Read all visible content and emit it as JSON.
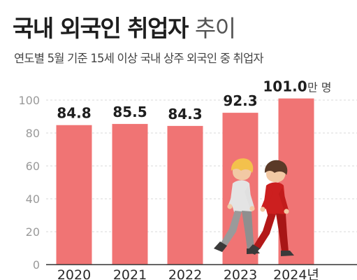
{
  "header": {
    "title_main": "국내 외국인 취업자",
    "title_light": "추이",
    "subtitle": "연도별 5월 기준 15세 이상 국내 상주 외국인 중 취업자"
  },
  "chart_data": {
    "type": "bar",
    "categories": [
      "2020",
      "2021",
      "2022",
      "2023",
      "2024년"
    ],
    "values": [
      84.8,
      85.5,
      84.3,
      92.3,
      101.0
    ],
    "value_labels": [
      "84.8",
      "85.5",
      "84.3",
      "92.3",
      "101.0"
    ],
    "unit": "만 명",
    "yticks": [
      0,
      20,
      40,
      60,
      80,
      100
    ],
    "ylim": [
      0,
      100
    ],
    "grid": true,
    "legend": "none",
    "colors": {
      "bar": "#f07474",
      "grid": "#d9d9d9",
      "axis": "#333333",
      "tick": "#9a9a9a",
      "label": "#1e1e1e"
    }
  },
  "illustration": {
    "name": "two-walking-people-icon",
    "colors": {
      "person1_shirt": "#e4e4e4",
      "person1_pants": "#9a9a9a",
      "person1_hair": "#f3c14c",
      "person2_shirt": "#cc1f1f",
      "person2_pants": "#b31818",
      "person2_hair": "#5a3a28",
      "skin": "#f2c9a4",
      "shoe": "#3a3a3a"
    }
  }
}
